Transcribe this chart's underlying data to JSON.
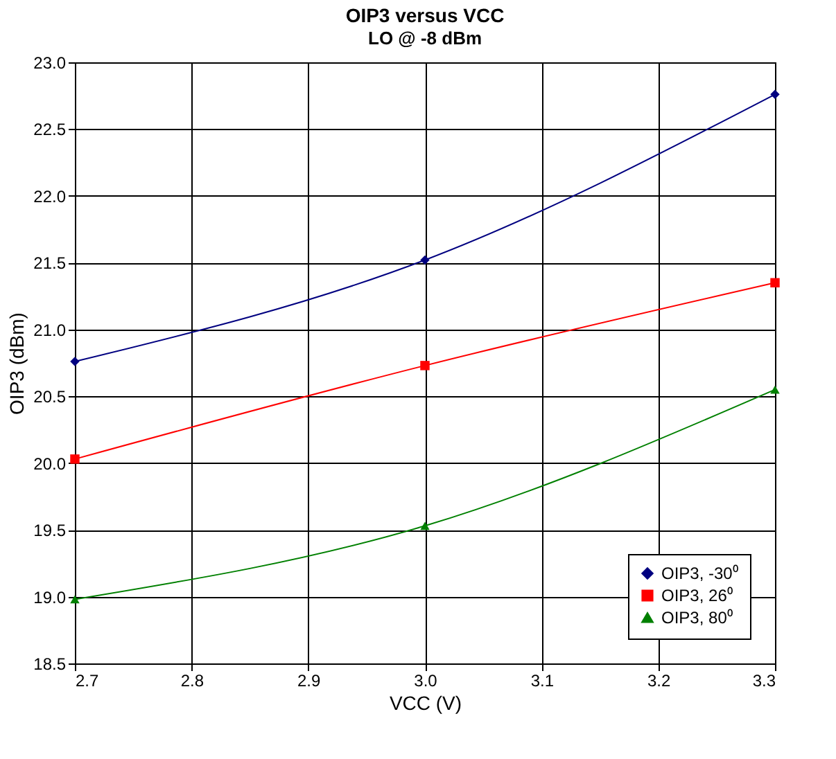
{
  "chart_data": {
    "type": "line",
    "title": "OIP3 versus VCC",
    "subtitle": "LO @ -8 dBm",
    "xlabel": "VCC (V)",
    "ylabel": "OIP3 (dBm)",
    "x": [
      2.7,
      3.0,
      3.3
    ],
    "series": [
      {
        "name": "OIP3, -30⁰",
        "color": "#000080",
        "marker": "diamond",
        "values": [
          20.76,
          21.52,
          22.76
        ]
      },
      {
        "name": "OIP3, 26⁰",
        "color": "#ff0000",
        "marker": "square",
        "values": [
          20.03,
          20.73,
          21.35
        ]
      },
      {
        "name": "OIP3, 80⁰",
        "color": "#008000",
        "marker": "triangle",
        "values": [
          18.98,
          19.53,
          20.55
        ]
      }
    ],
    "xlim": [
      2.7,
      3.3
    ],
    "xticks": [
      2.7,
      2.8,
      2.9,
      {
        "value": 3.0,
        "label": "3.0"
      },
      3.1,
      3.2,
      3.3
    ],
    "ylim": [
      18.5,
      23.0
    ],
    "yticks": [
      18.5,
      {
        "value": 19.0,
        "label": "19.0"
      },
      19.5,
      {
        "value": 20.0,
        "label": "20.0"
      },
      20.5,
      {
        "value": 21.0,
        "label": "21.0"
      },
      21.5,
      {
        "value": 22.0,
        "label": "22.0"
      },
      22.5,
      {
        "value": 23.0,
        "label": "23.0"
      }
    ],
    "grid": true,
    "legend": "bottom right",
    "line_style": "solid"
  }
}
